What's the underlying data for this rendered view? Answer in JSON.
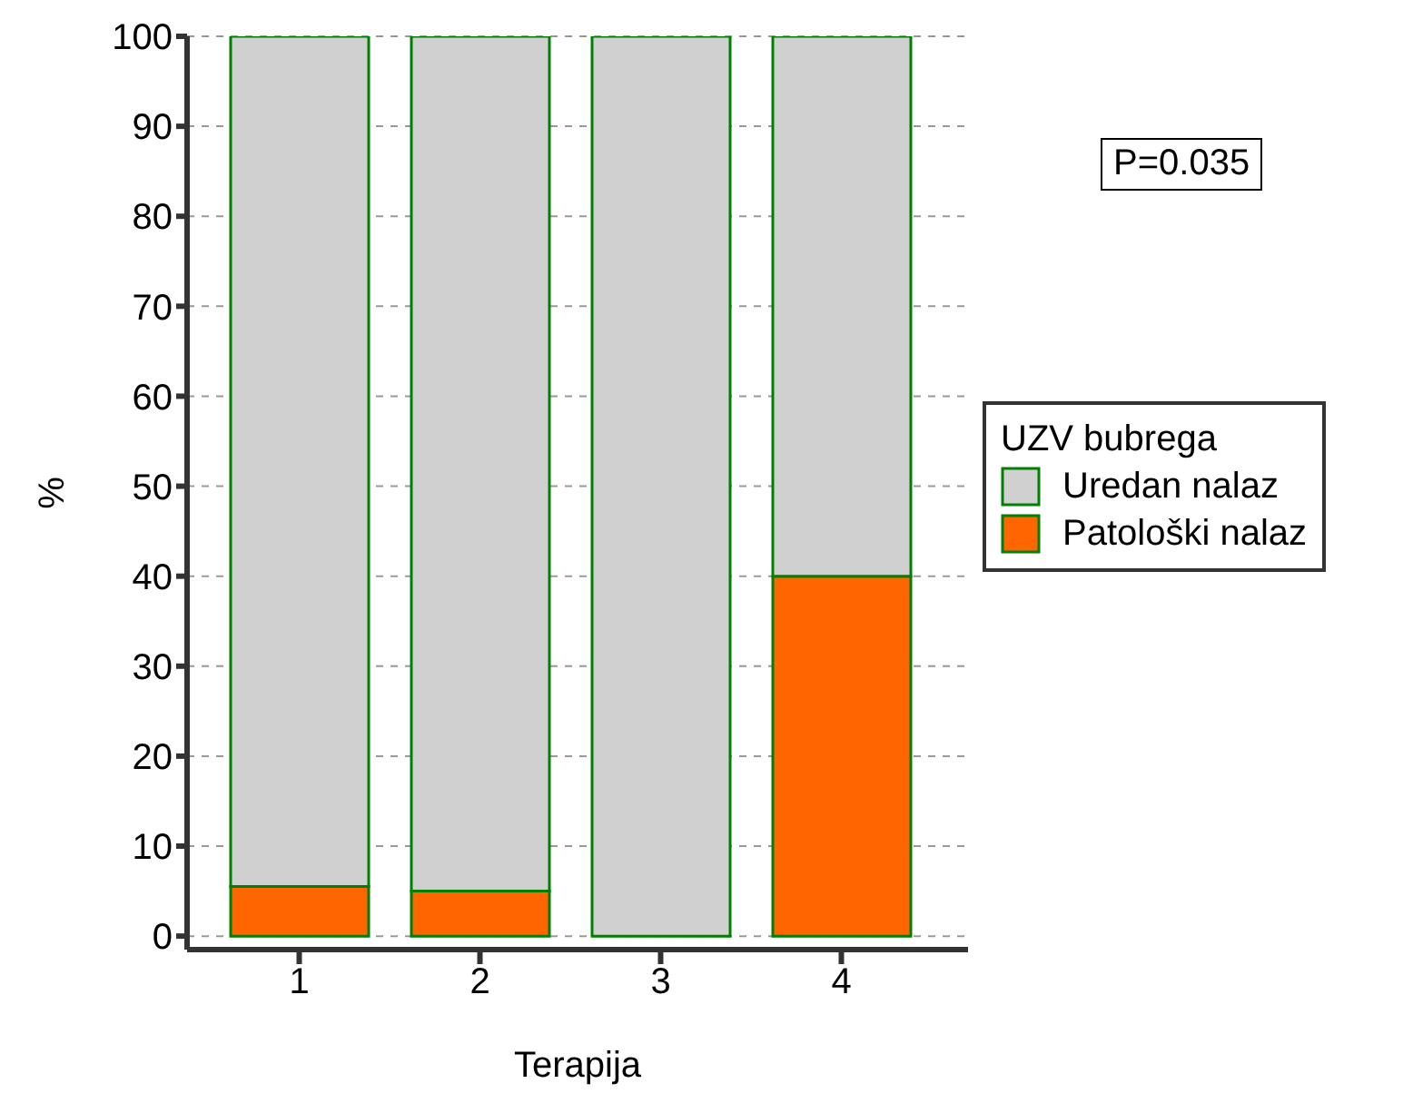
{
  "chart_data": {
    "type": "bar",
    "stacked": true,
    "categories": [
      "1",
      "2",
      "3",
      "4"
    ],
    "xlabel": "Terapija",
    "ylabel": "%",
    "legend_title": "UZV bubrega",
    "legend": "right",
    "grid": "y",
    "ylim": [
      -1.5,
      100
    ],
    "yticks": [
      0,
      10,
      20,
      30,
      40,
      50,
      60,
      70,
      80,
      90,
      100
    ],
    "annotations": [
      "P=0.035"
    ],
    "series": [
      {
        "name": "Patološki nalaz",
        "color": "#ff6600",
        "values": [
          5.5,
          5,
          0,
          40
        ]
      },
      {
        "name": "Uredan nalaz",
        "color": "#d0d0d0",
        "values": [
          94.5,
          95,
          100,
          60
        ]
      }
    ]
  }
}
